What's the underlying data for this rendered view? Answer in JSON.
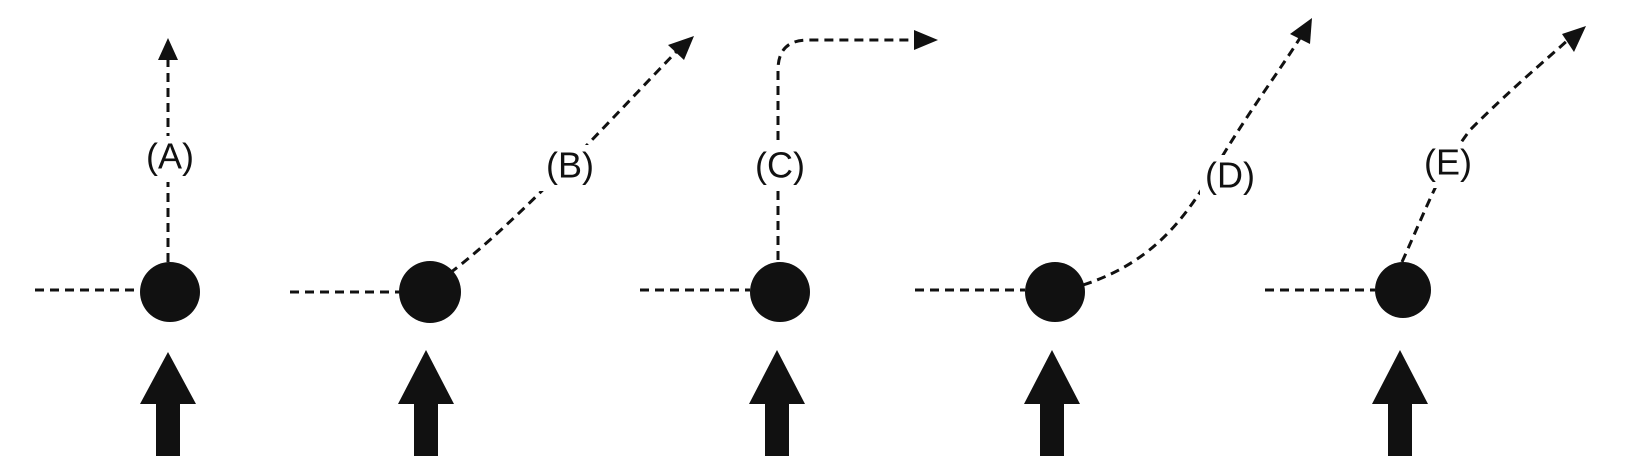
{
  "colors": {
    "ink": "#111111",
    "background": "#ffffff"
  },
  "icons": {
    "node": "filled-circle",
    "force_arrow": "thick-up-arrow",
    "path_arrowhead": "triangle-arrowhead"
  },
  "panels": [
    {
      "label": "(A)"
    },
    {
      "label": "(B)"
    },
    {
      "label": "(C)"
    },
    {
      "label": "(D)"
    },
    {
      "label": "(E)"
    }
  ]
}
